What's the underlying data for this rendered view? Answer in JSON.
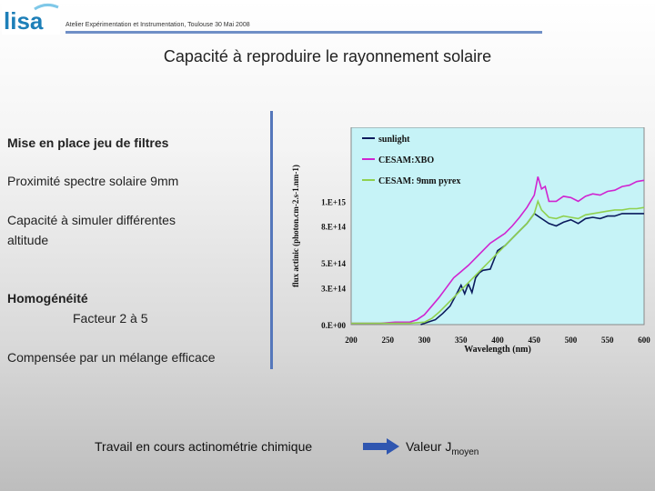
{
  "header": {
    "logo_text": "lisa",
    "event": "Atelier Expérimentation et Instrumentation, Toulouse 30 Mai 2008"
  },
  "title": "Capacité à reproduire le rayonnement solaire",
  "left_panel": {
    "item1": "Mise en place jeu de filtres",
    "item2": "Proximité spectre solaire 9mm",
    "item3_line1": "Capacité à simuler différentes",
    "item3_line2": "altitude",
    "item4_heading": "Homogénéité",
    "item4_sub": "Facteur 2 à 5",
    "item5": "Compensée par un mélange efficace"
  },
  "footer": {
    "left": "Travail en cours actinométrie chimique",
    "right_prefix": "Valeur J",
    "right_sub": "moyen"
  },
  "chart_data": {
    "type": "line",
    "xlabel": "Wavelength (nm)",
    "ylabel": "flux actinic (photon.cm-2.s-1.nm-1)",
    "xlim": [
      200,
      600
    ],
    "ylim": [
      0,
      1600000000000000
    ],
    "xticks": [
      "200",
      "250",
      "300",
      "350",
      "400",
      "450",
      "500",
      "550",
      "600"
    ],
    "yticks": [
      {
        "label": "0.E+00",
        "value": 0
      },
      {
        "label": "3.E+14",
        "value": 300000000000000
      },
      {
        "label": "5.E+14",
        "value": 500000000000000
      },
      {
        "label": "8.E+14",
        "value": 800000000000000
      },
      {
        "label": "1.E+15",
        "value": 1000000000000000
      }
    ],
    "background": "#c6f3f7",
    "legend_position": "top-left",
    "series": [
      {
        "name": "sunlight",
        "color": "#0a1a5c",
        "x": [
          295,
          305,
          315,
          325,
          335,
          345,
          350,
          355,
          360,
          365,
          370,
          375,
          380,
          390,
          400,
          410,
          420,
          430,
          440,
          450,
          460,
          470,
          480,
          490,
          500,
          510,
          520,
          530,
          540,
          550,
          560,
          570,
          580,
          590,
          600
        ],
        "y": [
          0,
          20000000000000,
          40000000000000,
          90000000000000,
          150000000000000,
          260000000000000,
          320000000000000,
          250000000000000,
          330000000000000,
          260000000000000,
          380000000000000,
          420000000000000,
          440000000000000,
          450000000000000,
          600000000000000,
          640000000000000,
          700000000000000,
          760000000000000,
          820000000000000,
          900000000000000,
          860000000000000,
          820000000000000,
          800000000000000,
          830000000000000,
          850000000000000,
          820000000000000,
          860000000000000,
          870000000000000,
          860000000000000,
          880000000000000,
          880000000000000,
          900000000000000,
          900000000000000,
          900000000000000,
          900000000000000
        ]
      },
      {
        "name": "CESAM:XBO",
        "color": "#d024d0",
        "x": [
          200,
          220,
          240,
          260,
          280,
          290,
          300,
          310,
          320,
          330,
          340,
          350,
          360,
          370,
          380,
          390,
          400,
          410,
          420,
          430,
          440,
          450,
          455,
          460,
          465,
          470,
          480,
          490,
          500,
          510,
          520,
          530,
          540,
          550,
          560,
          570,
          580,
          590,
          600
        ],
        "y": [
          10000000000000,
          10000000000000,
          10000000000000,
          20000000000000,
          20000000000000,
          40000000000000,
          80000000000000,
          150000000000000,
          220000000000000,
          300000000000000,
          380000000000000,
          430000000000000,
          480000000000000,
          540000000000000,
          600000000000000,
          660000000000000,
          700000000000000,
          740000000000000,
          800000000000000,
          870000000000000,
          950000000000000,
          1050000000000000,
          1200000000000000,
          1100000000000000,
          1120000000000000,
          1000000000000000,
          1000000000000000,
          1040000000000000,
          1030000000000000,
          1000000000000000,
          1040000000000000,
          1060000000000000,
          1050000000000000,
          1080000000000000,
          1090000000000000,
          1120000000000000,
          1130000000000000,
          1160000000000000,
          1170000000000000
        ]
      },
      {
        "name": "CESAM: 9mm pyrex",
        "color": "#8fd14f",
        "x": [
          200,
          240,
          280,
          300,
          310,
          320,
          330,
          340,
          350,
          360,
          370,
          380,
          390,
          400,
          410,
          420,
          430,
          440,
          450,
          455,
          460,
          470,
          480,
          490,
          500,
          510,
          520,
          530,
          540,
          550,
          560,
          570,
          580,
          590,
          600
        ],
        "y": [
          10000000000000,
          10000000000000,
          10000000000000,
          20000000000000,
          50000000000000,
          100000000000000,
          160000000000000,
          220000000000000,
          280000000000000,
          340000000000000,
          400000000000000,
          460000000000000,
          520000000000000,
          580000000000000,
          640000000000000,
          700000000000000,
          760000000000000,
          820000000000000,
          900000000000000,
          1000000000000000,
          930000000000000,
          870000000000000,
          860000000000000,
          880000000000000,
          870000000000000,
          860000000000000,
          890000000000000,
          900000000000000,
          910000000000000,
          920000000000000,
          930000000000000,
          930000000000000,
          940000000000000,
          940000000000000,
          950000000000000
        ]
      }
    ]
  }
}
